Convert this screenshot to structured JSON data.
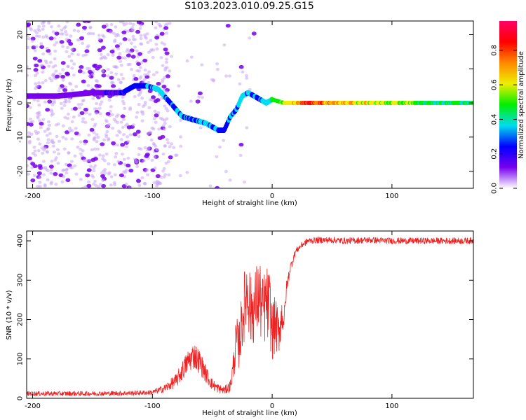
{
  "title": "S103.2023.010.09.25.G15",
  "colors": {
    "snr_line": "#ee2222",
    "colormap": [
      "#ffffff",
      "#7700ee",
      "#0000ff",
      "#00ddee",
      "#00ee00",
      "#eeee00",
      "#ff8800",
      "#ff0000",
      "#ff0066"
    ]
  },
  "chart_data": [
    {
      "type": "heatmap",
      "title": "",
      "xlabel": "Height of straight line (km)",
      "ylabel": "Frequency (Hz)",
      "xlim": [
        -205,
        168
      ],
      "ylim": [
        -25,
        24
      ],
      "x_ticks": [
        -200,
        -100,
        0,
        100
      ],
      "y_ticks": [
        -20,
        -10,
        0,
        10,
        20
      ],
      "grid": false,
      "colorbar": {
        "label": "Normalized spectral amplitude",
        "range": [
          0.0,
          0.97
        ],
        "ticks": [
          0.0,
          0.2,
          0.4,
          0.6,
          0.8
        ]
      },
      "dominant_frequency": {
        "x": [
          -205,
          -180,
          -150,
          -125,
          -115,
          -105,
          -95,
          -85,
          -75,
          -65,
          -55,
          -45,
          -40,
          -35,
          -30,
          -25,
          -20,
          -15,
          -10,
          -5,
          0,
          10,
          30,
          60,
          100,
          140,
          168
        ],
        "freq_hz": [
          2,
          2,
          3,
          3,
          5,
          5,
          4,
          0,
          -4,
          -5,
          -6,
          -8,
          -8,
          -4,
          -2,
          2,
          3,
          2,
          1,
          0,
          1,
          0,
          0,
          0,
          0,
          0,
          0
        ],
        "amplitude": [
          0.15,
          0.15,
          0.15,
          0.2,
          0.25,
          0.3,
          0.35,
          0.3,
          0.3,
          0.3,
          0.3,
          0.3,
          0.25,
          0.3,
          0.3,
          0.35,
          0.35,
          0.3,
          0.3,
          0.35,
          0.4,
          0.6,
          0.8,
          0.65,
          0.55,
          0.45,
          0.4
        ]
      }
    },
    {
      "type": "line",
      "title": "",
      "xlabel": "Height of straight line (km)",
      "ylabel": "SNR (10 * v/v)",
      "xlim": [
        -205,
        168
      ],
      "ylim": [
        0,
        425
      ],
      "x_ticks": [
        -200,
        -100,
        0,
        100
      ],
      "y_ticks": [
        0,
        100,
        200,
        300,
        400
      ],
      "grid": false,
      "series": [
        {
          "x": [
            -205,
            -180,
            -150,
            -120,
            -100,
            -90,
            -80,
            -75,
            -70,
            -65,
            -60,
            -55,
            -50,
            -45,
            -40,
            -35,
            -32,
            -30,
            -28,
            -25,
            -22,
            -20,
            -18,
            -15,
            -12,
            -10,
            -8,
            -5,
            -2,
            0,
            3,
            5,
            8,
            10,
            12,
            15,
            18,
            20,
            25,
            30,
            40,
            50,
            60,
            80,
            100,
            120,
            140,
            168
          ],
          "y": [
            12,
            12,
            12,
            13,
            15,
            25,
            45,
            70,
            95,
            110,
            90,
            60,
            35,
            25,
            20,
            30,
            90,
            150,
            130,
            200,
            260,
            280,
            220,
            230,
            260,
            250,
            220,
            240,
            230,
            170,
            190,
            160,
            210,
            200,
            280,
            330,
            360,
            375,
            390,
            400,
            402,
            402,
            400,
            402,
            400,
            400,
            400,
            400
          ],
          "noise": [
            6,
            6,
            6,
            6,
            6,
            10,
            18,
            25,
            30,
            35,
            30,
            22,
            15,
            12,
            10,
            15,
            40,
            60,
            60,
            80,
            95,
            110,
            90,
            90,
            95,
            100,
            90,
            100,
            95,
            80,
            70,
            60,
            50,
            30,
            20,
            12,
            10,
            8,
            8,
            8,
            8,
            8,
            8,
            8,
            8,
            8,
            8,
            8
          ]
        }
      ]
    }
  ]
}
